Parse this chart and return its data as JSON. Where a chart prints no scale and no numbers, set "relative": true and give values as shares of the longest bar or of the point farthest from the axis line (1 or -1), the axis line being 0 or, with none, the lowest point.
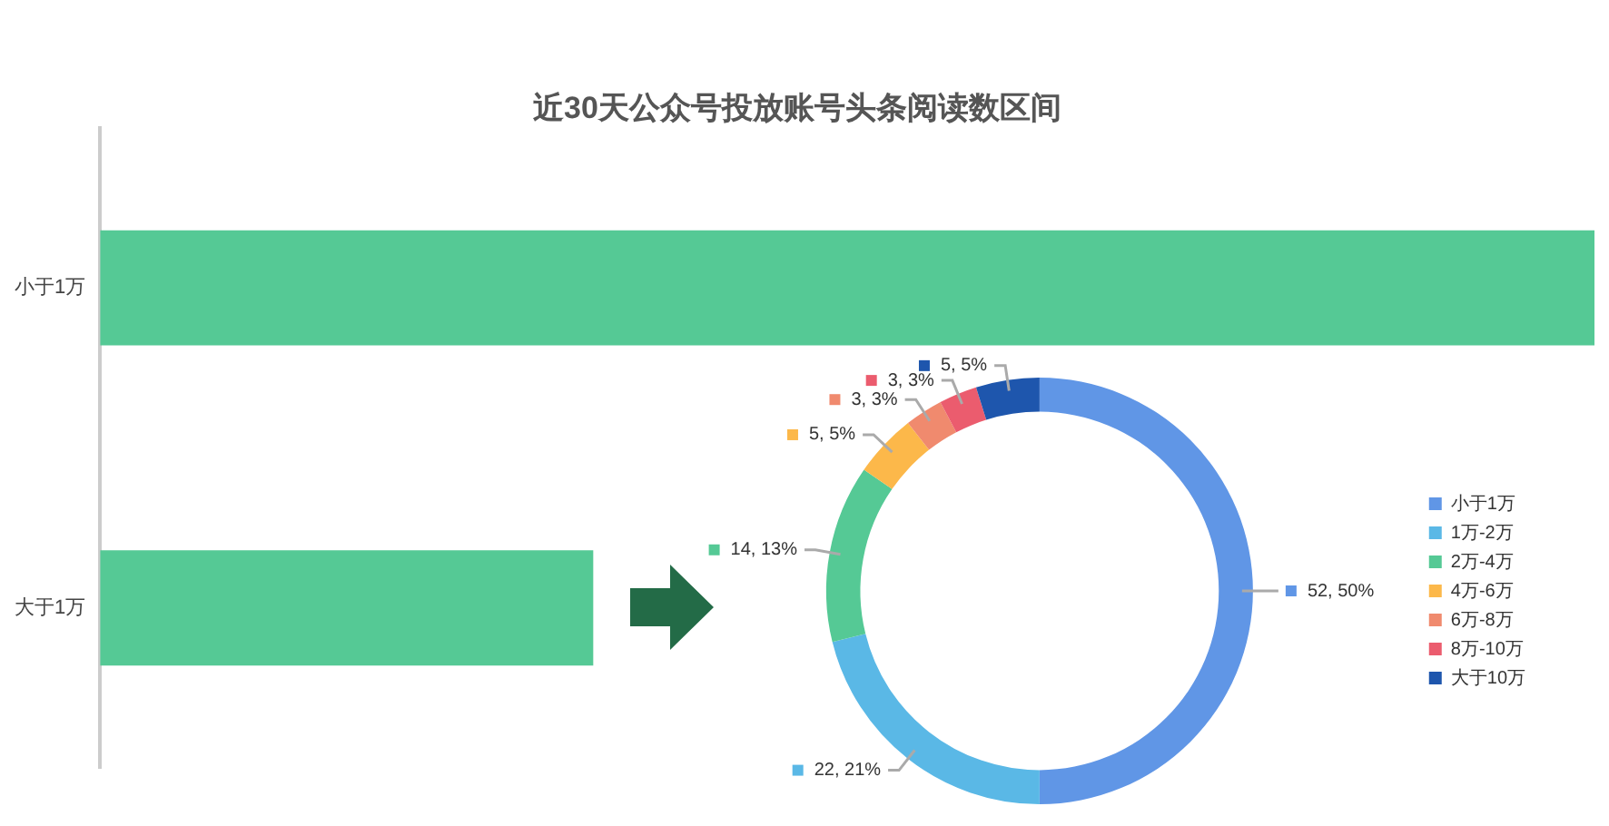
{
  "chart_data": [
    {
      "type": "bar",
      "title": "近30天公众号投放账号头条阅读数区间",
      "orientation": "horizontal",
      "relative": true,
      "categories": [
        "小于1万",
        "大于1万"
      ],
      "values": [
        1,
        0.33
      ],
      "color": "#55c995",
      "legend": false
    },
    {
      "type": "donut",
      "categories": [
        "小于1万",
        "1万-2万",
        "2万-4万",
        "4万-6万",
        "6万-8万",
        "8万-10万",
        "大于10万"
      ],
      "values": [
        52,
        22,
        14,
        5,
        3,
        3,
        5
      ],
      "colors": [
        "#6096e6",
        "#5ab8e6",
        "#55c995",
        "#fcb84a",
        "#f08a6e",
        "#eb5c6e",
        "#1e56ad"
      ],
      "value_labels": [
        "52, 50%",
        "22, 21%",
        "14, 13%",
        "5, 5%",
        "3, 3%",
        "3, 3%",
        "5, 5%"
      ],
      "legend": "right"
    }
  ]
}
